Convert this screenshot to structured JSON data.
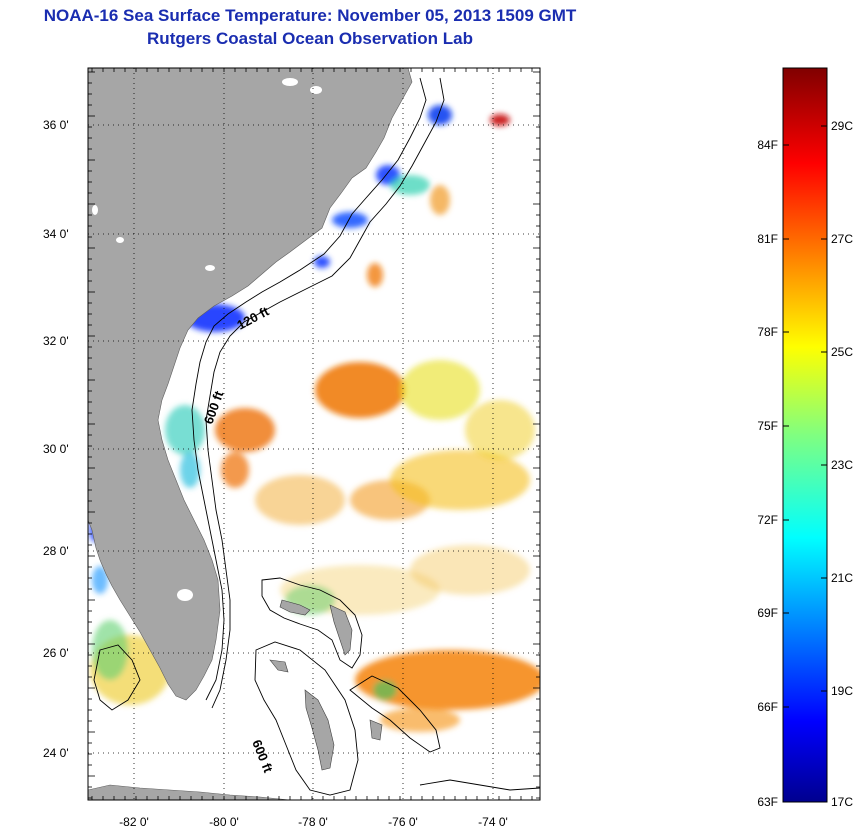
{
  "header": {
    "title": "NOAA-16 Sea Surface Temperature:  November 05, 2013 1509 GMT",
    "subtitle": "Rutgers Coastal Ocean Observation Lab"
  },
  "map": {
    "lat_ticks": [
      "24 0'",
      "26 0'",
      "28 0'",
      "30 0'",
      "32 0'",
      "34 0'",
      "36 0'"
    ],
    "lon_ticks": [
      "-82 0'",
      "-80 0'",
      "-78 0'",
      "-76 0'",
      "-74 0'"
    ],
    "contour_labels": [
      "120 ft",
      "600 ft",
      "600 ft"
    ],
    "colors": {
      "land": "#a6a6a6",
      "water_nodata": "#ffffff"
    }
  },
  "colorbar": {
    "fahrenheit_labels": [
      "84F",
      "81F",
      "78F",
      "75F",
      "72F",
      "69F",
      "66F",
      "63F"
    ],
    "celsius_labels": [
      "29C",
      "27C",
      "25C",
      "23C",
      "21C",
      "19C",
      "17C"
    ],
    "range_celsius": [
      17,
      30
    ],
    "colormap": "jet"
  }
}
